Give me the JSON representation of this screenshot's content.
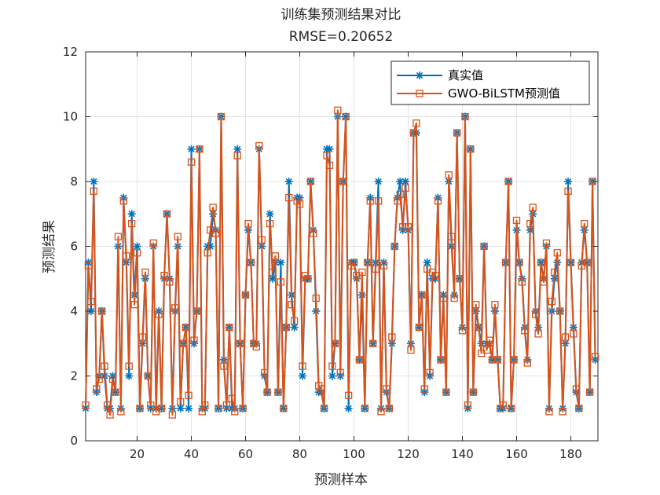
{
  "chart_data": {
    "type": "line",
    "title": "训练集预测结果对比",
    "subtitle": "RMSE=0.20652",
    "xlabel": "预测样本",
    "ylabel": "预测结果",
    "xlim": [
      1,
      190
    ],
    "ylim": [
      0,
      12
    ],
    "xticks": [
      20,
      40,
      60,
      80,
      100,
      120,
      140,
      160,
      180
    ],
    "yticks": [
      0,
      2,
      4,
      6,
      8,
      10,
      12
    ],
    "grid": true,
    "legend_position": "top-right",
    "series": [
      {
        "name": "真实值",
        "color": "#0072BD",
        "marker": "asterisk",
        "values": [
          1,
          5.5,
          4,
          8,
          1.5,
          2,
          4,
          2,
          1,
          1,
          2,
          1.5,
          6,
          1,
          7.5,
          5.5,
          2,
          7,
          4.5,
          6,
          1,
          3,
          5,
          2,
          1,
          6,
          1,
          4,
          1,
          5,
          7,
          5,
          1,
          4,
          6,
          1,
          3,
          3.5,
          1,
          9,
          3,
          4,
          9,
          1,
          1,
          6,
          6,
          7,
          6.5,
          1,
          10,
          2.5,
          1,
          3.5,
          1,
          1,
          9,
          3,
          1,
          4.5,
          6.5,
          5.5,
          3,
          3,
          9,
          6,
          2,
          1.5,
          7,
          5,
          5.5,
          1.5,
          5.5,
          1,
          3.5,
          8,
          4.5,
          3.5,
          7.5,
          7.5,
          2,
          5,
          5,
          8,
          6.5,
          4,
          1.5,
          1.5,
          1,
          9,
          9,
          2,
          3,
          10,
          2,
          8,
          10,
          1,
          5.5,
          5.5,
          5,
          2.5,
          4.5,
          1,
          5.5,
          7.5,
          3,
          5.5,
          8,
          1,
          5.5,
          1.5,
          1,
          3,
          6,
          7.5,
          8,
          6.5,
          8,
          6.5,
          3,
          9.5,
          9.5,
          3.5,
          4.5,
          1.5,
          5.5,
          2,
          5,
          5,
          7.5,
          2.5,
          4.5,
          1.5,
          8,
          6,
          4.5,
          9.5,
          5,
          3.5,
          10,
          1,
          9,
          1.5,
          4,
          3.5,
          3,
          6,
          3,
          3,
          2.5,
          4,
          2.5,
          1,
          1,
          5.5,
          8,
          1,
          2.5,
          6.5,
          5.5,
          5,
          3.5,
          2.5,
          6.5,
          7,
          4,
          3.5,
          5.5,
          5,
          6,
          1,
          4,
          5,
          5.5,
          4,
          1,
          3,
          8,
          5.5,
          3.5,
          1.5,
          1,
          5.5,
          6.5,
          5.5,
          1.5,
          8,
          2.5
        ]
      },
      {
        "name": "GWO-BiLSTM预测值",
        "color": "#D95319",
        "marker": "square",
        "values": [
          1.1,
          5.4,
          4.3,
          7.7,
          1.6,
          1.9,
          4,
          2.3,
          1.1,
          0.8,
          1.9,
          1.5,
          6.3,
          0.9,
          7.4,
          5.7,
          2.3,
          6.7,
          4.2,
          5.8,
          1,
          3.2,
          5.2,
          2,
          1.1,
          6.1,
          0.9,
          3.9,
          1,
          5.1,
          7,
          4.9,
          0.8,
          4.1,
          6.3,
          1.2,
          3,
          3.5,
          1.4,
          8.6,
          3.1,
          4,
          9,
          0.9,
          1.1,
          5.8,
          6.5,
          7.2,
          6.4,
          1,
          10,
          2.3,
          1.1,
          3.5,
          1.3,
          0.9,
          8.8,
          3,
          1,
          4.5,
          6.7,
          5.5,
          3,
          2.9,
          9.1,
          6.2,
          2.1,
          1.5,
          6.7,
          5.2,
          5.7,
          1.5,
          4.9,
          1,
          3.5,
          7.5,
          4.2,
          3.7,
          7.4,
          7.3,
          2.3,
          5.1,
          5,
          8,
          6.4,
          4.4,
          1.7,
          1.6,
          1,
          8.8,
          8.5,
          2.3,
          3,
          10.2,
          2.1,
          8,
          10,
          1.4,
          5.4,
          5.5,
          5.1,
          2.5,
          5.2,
          1,
          5.5,
          7.4,
          3,
          5.3,
          7.4,
          0.9,
          5.4,
          1.6,
          1,
          3.2,
          6,
          7.4,
          7.6,
          6.6,
          7.8,
          6.6,
          2.8,
          9.5,
          9.8,
          3.5,
          4.5,
          1.6,
          5.3,
          2.1,
          5.2,
          5.1,
          7.4,
          2.5,
          4.4,
          1.5,
          8.2,
          6.3,
          4.4,
          9.5,
          5,
          3.4,
          10,
          1.1,
          9,
          1.5,
          4.2,
          3.5,
          2.7,
          6,
          2.8,
          3.1,
          2.5,
          4.2,
          2.5,
          1,
          1.1,
          5.5,
          8,
          1,
          2.5,
          6.8,
          5.5,
          4.9,
          3.4,
          2.4,
          6.7,
          7.2,
          3.9,
          3.3,
          5.5,
          4.9,
          6.1,
          0.9,
          4.3,
          5.2,
          5.8,
          4,
          0.9,
          3.2,
          7.7,
          5.5,
          3.3,
          1.6,
          1,
          5.4,
          6.7,
          5.5,
          1.5,
          8,
          2.6
        ]
      }
    ]
  }
}
